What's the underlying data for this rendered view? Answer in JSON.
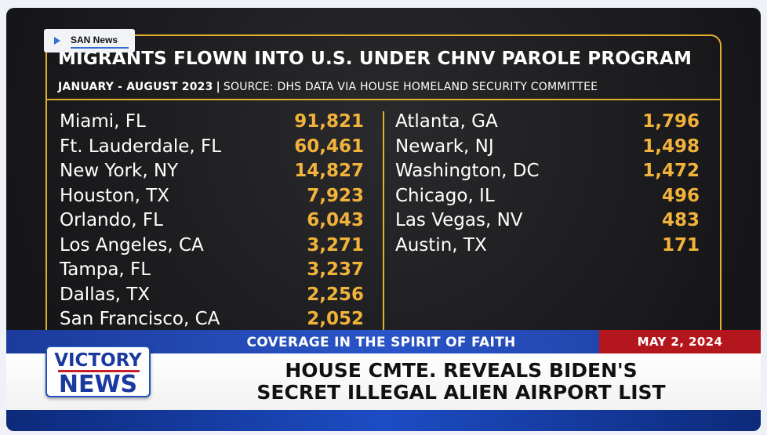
{
  "badge": {
    "label": "SAN News",
    "icon": "play-icon"
  },
  "chart_data": {
    "type": "table",
    "title": "MIGRANTS FLOWN INTO U.S. UNDER CHNV PAROLE PROGRAM",
    "subtitle_date": "JANUARY - AUGUST 2023",
    "subtitle_sep": "|",
    "subtitle_source": "SOURCE: DHS DATA VIA HOUSE HOMELAND SECURITY COMMITTEE",
    "left": [
      {
        "city": "Miami, FL",
        "value": "91,821"
      },
      {
        "city": "Ft. Lauderdale, FL",
        "value": "60,461"
      },
      {
        "city": "New York, NY",
        "value": "14,827"
      },
      {
        "city": "Houston, TX",
        "value": "7,923"
      },
      {
        "city": "Orlando, FL",
        "value": "6,043"
      },
      {
        "city": "Los Angeles, CA",
        "value": "3,271"
      },
      {
        "city": "Tampa, FL",
        "value": "3,237"
      },
      {
        "city": "Dallas, TX",
        "value": "2,256"
      },
      {
        "city": "San Francisco, CA",
        "value": "2,052"
      }
    ],
    "right": [
      {
        "city": "Atlanta, GA",
        "value": "1,796"
      },
      {
        "city": "Newark, NJ",
        "value": "1,498"
      },
      {
        "city": "Washington, DC",
        "value": "1,472"
      },
      {
        "city": "Chicago, IL",
        "value": "496"
      },
      {
        "city": "Las Vegas, NV",
        "value": "483"
      },
      {
        "city": "Austin, TX",
        "value": "171"
      }
    ],
    "colors": {
      "accent": "#e2b030",
      "value": "#f2b33a"
    }
  },
  "lower_third": {
    "tagline": "COVERAGE IN THE SPIRIT OF FAITH",
    "date": "MAY 2, 2024",
    "headline_line1": "HOUSE CMTE. REVEALS BIDEN'S",
    "headline_line2": "SECRET ILLEGAL ALIEN AIRPORT LIST",
    "logo_line1": "VICTORY",
    "logo_line2": "NEWS"
  }
}
